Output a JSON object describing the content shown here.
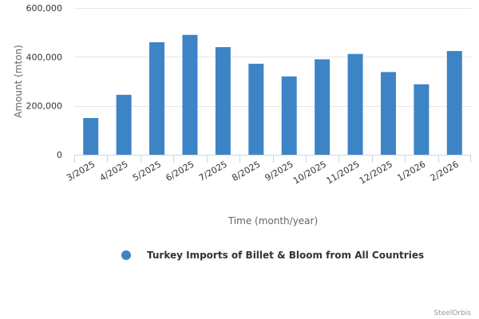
{
  "chart_data": {
    "type": "bar",
    "categories": [
      "3/2025",
      "4/2025",
      "5/2025",
      "6/2025",
      "7/2025",
      "8/2025",
      "9/2025",
      "10/2025",
      "11/2025",
      "12/2025",
      "1/2026",
      "2/2026"
    ],
    "series": [
      {
        "name": "Turkey Imports of Billet & Bloom from All Countries",
        "color": "#3d84c6",
        "values": [
          150000,
          245000,
          460000,
          490000,
          440000,
          372000,
          320000,
          390000,
          412000,
          338000,
          288000,
          424000
        ]
      }
    ],
    "title": "",
    "xlabel": "Time (month/year)",
    "ylabel": "Amount (mton)",
    "ylim": [
      0,
      600000
    ],
    "yticks": [
      0,
      200000,
      400000,
      600000
    ],
    "ytick_labels": [
      "0",
      "200,000",
      "400,000",
      "600,000"
    ],
    "grid": true,
    "legend_position": "bottom-center"
  },
  "credit": "SteelOrbis"
}
